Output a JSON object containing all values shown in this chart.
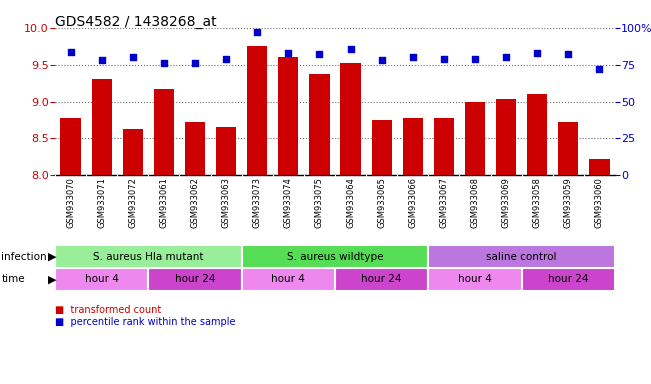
{
  "title": "GDS4582 / 1438268_at",
  "samples": [
    "GSM933070",
    "GSM933071",
    "GSM933072",
    "GSM933061",
    "GSM933062",
    "GSM933063",
    "GSM933073",
    "GSM933074",
    "GSM933075",
    "GSM933064",
    "GSM933065",
    "GSM933066",
    "GSM933067",
    "GSM933068",
    "GSM933069",
    "GSM933058",
    "GSM933059",
    "GSM933060"
  ],
  "transformed_count": [
    8.78,
    9.3,
    8.62,
    9.17,
    8.72,
    8.65,
    9.76,
    9.6,
    9.38,
    9.53,
    8.75,
    8.78,
    8.78,
    9.0,
    9.03,
    9.1,
    8.72,
    8.22
  ],
  "percentile_rank": [
    84,
    78,
    80,
    76,
    76,
    79,
    97,
    83,
    82,
    86,
    78,
    80,
    79,
    79,
    80,
    83,
    82,
    72
  ],
  "ylim_left": [
    8.0,
    10.0
  ],
  "ylim_right": [
    0,
    100
  ],
  "yticks_left": [
    8.0,
    8.5,
    9.0,
    9.5,
    10.0
  ],
  "yticks_right": [
    0,
    25,
    50,
    75,
    100
  ],
  "bar_color": "#cc0000",
  "dot_color": "#0000cc",
  "bg_color": "#ffffff",
  "plot_bg_color": "#ffffff",
  "grid_color": "#000000",
  "label_bg_color": "#cccccc",
  "infection_groups": [
    {
      "label": "S. aureus Hla mutant",
      "start": 0,
      "end": 6,
      "color": "#99ee99"
    },
    {
      "label": "S. aureus wildtype",
      "start": 6,
      "end": 12,
      "color": "#55dd55"
    },
    {
      "label": "saline control",
      "start": 12,
      "end": 18,
      "color": "#bb77dd"
    }
  ],
  "time_groups": [
    {
      "label": "hour 4",
      "start": 0,
      "end": 3,
      "color": "#ee88ee"
    },
    {
      "label": "hour 24",
      "start": 3,
      "end": 6,
      "color": "#cc44cc"
    },
    {
      "label": "hour 4",
      "start": 6,
      "end": 9,
      "color": "#ee88ee"
    },
    {
      "label": "hour 24",
      "start": 9,
      "end": 12,
      "color": "#cc44cc"
    },
    {
      "label": "hour 4",
      "start": 12,
      "end": 15,
      "color": "#ee88ee"
    },
    {
      "label": "hour 24",
      "start": 15,
      "end": 18,
      "color": "#cc44cc"
    }
  ],
  "left_axis_color": "#cc0000",
  "right_axis_color": "#0000cc",
  "label_fontsize": 6,
  "tick_fontsize": 8,
  "title_fontsize": 10,
  "group_fontsize": 7.5,
  "legend_fontsize": 7
}
